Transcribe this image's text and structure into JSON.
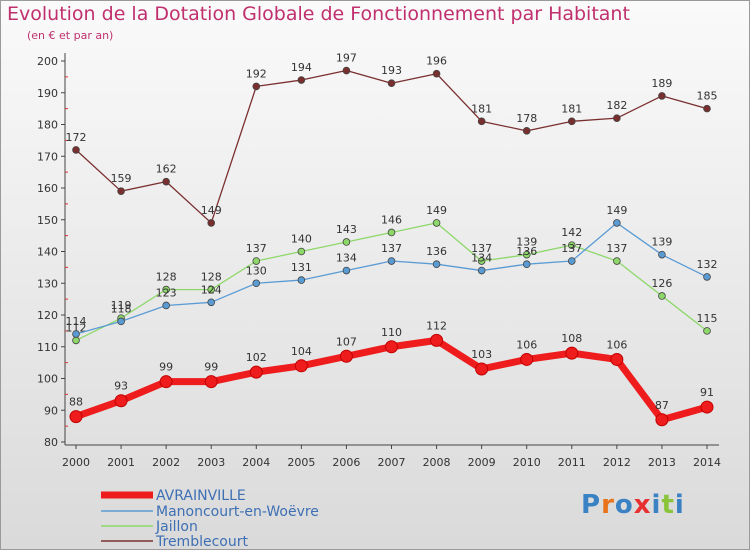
{
  "chart_data": {
    "type": "line",
    "title": "Evolution de la Dotation Globale de Fonctionnement par Habitant",
    "subtitle": "(en € et par an)",
    "x": [
      "2000",
      "2001",
      "2002",
      "2003",
      "2004",
      "2005",
      "2006",
      "2007",
      "2008",
      "2009",
      "2010",
      "2011",
      "2012",
      "2013",
      "2014"
    ],
    "ylim": [
      80,
      200
    ],
    "yticks": [
      80,
      90,
      100,
      110,
      120,
      130,
      140,
      150,
      160,
      170,
      180,
      190,
      200
    ],
    "grid": false,
    "series": [
      {
        "name": "Tremblecourt",
        "color": "#7a2f2f",
        "values": [
          172,
          159,
          162,
          149,
          192,
          194,
          197,
          193,
          196,
          181,
          178,
          181,
          182,
          189,
          185
        ]
      },
      {
        "name": "Jaillon",
        "color": "#8ed86a",
        "values": [
          112,
          119,
          128,
          128,
          137,
          140,
          143,
          146,
          149,
          137,
          139,
          142,
          137,
          126,
          115
        ]
      },
      {
        "name": "Manoncourt-en-Woëvre",
        "color": "#5a9bd4",
        "values": [
          114,
          118,
          123,
          124,
          130,
          131,
          134,
          137,
          136,
          134,
          136,
          137,
          149,
          139,
          132
        ]
      },
      {
        "name": "AVRAINVILLE",
        "color": "#ee1c1c",
        "values": [
          88,
          93,
          99,
          99,
          102,
          104,
          107,
          110,
          112,
          103,
          106,
          108,
          106,
          87,
          91
        ]
      }
    ],
    "legend_order": [
      "AVRAINVILLE",
      "Manoncourt-en-Woëvre",
      "Jaillon",
      "Tremblecourt"
    ]
  },
  "logo": {
    "text": "Proxiti",
    "colors": [
      "#3b82c4",
      "#e8731b",
      "#3b82c4",
      "#e83030",
      "#3b82c4",
      "#8ac43b",
      "#3b82c4"
    ]
  }
}
